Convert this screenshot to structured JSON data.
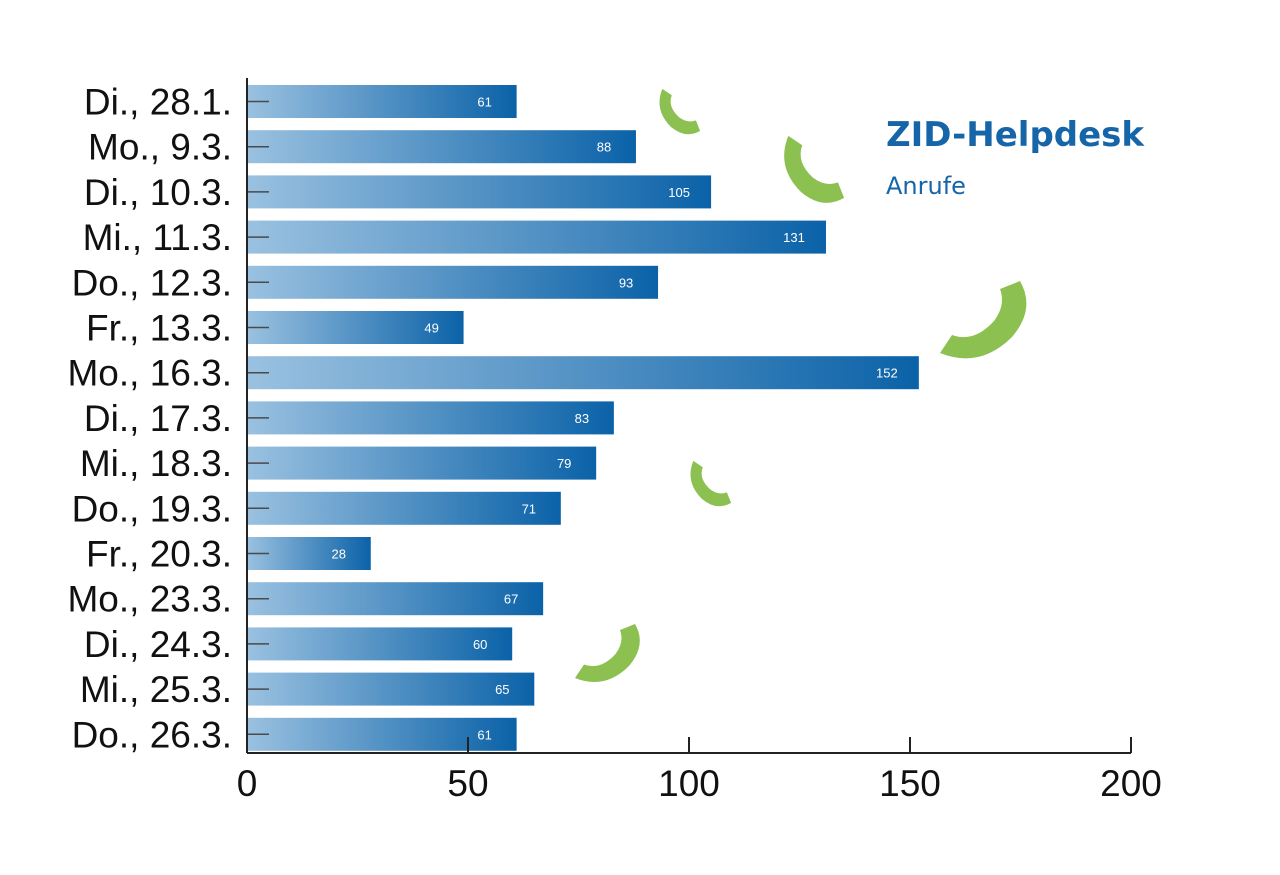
{
  "chart_data": {
    "type": "bar",
    "orientation": "horizontal",
    "title": "ZID-Helpdesk",
    "subtitle": "Anrufe",
    "xlabel": "",
    "ylabel": "",
    "xlim": [
      0,
      200
    ],
    "x_ticks": [
      0,
      50,
      100,
      150,
      200
    ],
    "grid": false,
    "categories": [
      "Di., 28.1.",
      "Mo., 9.3.",
      "Di., 10.3.",
      "Mi., 11.3.",
      "Do., 12.3.",
      "Fr., 13.3.",
      "Mo., 16.3.",
      "Di., 17.3.",
      "Mi., 18.3.",
      "Do., 19.3.",
      "Fr., 20.3.",
      "Mo., 23.3.",
      "Di., 24.3.",
      "Mi., 25.3.",
      "Do., 26.3."
    ],
    "values": [
      61,
      88,
      105,
      131,
      93,
      49,
      152,
      83,
      79,
      71,
      28,
      67,
      60,
      65,
      61
    ]
  },
  "colors": {
    "bar_start": "#9ac1e0",
    "bar_end": "#0b62a8",
    "title": "#1565a8",
    "phone_icon": "#8cc152",
    "axis": "#222222"
  },
  "decorations": {
    "phone_icon": "phone-handset-icon"
  }
}
